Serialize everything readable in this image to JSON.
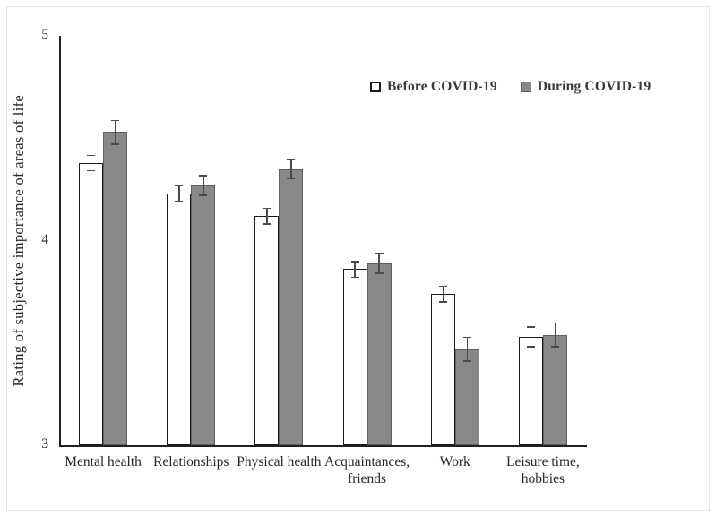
{
  "figure": {
    "background": "#ffffff",
    "border_color": "#e4e4e4",
    "text_color": "#262626",
    "axis_color": "#1f1f1f",
    "error_bar_color": "#4a4a4a"
  },
  "chart_data": {
    "type": "bar",
    "title": "",
    "xlabel": "",
    "ylabel": "Rating of subjective importance of areas of life",
    "ylim": [
      3,
      5
    ],
    "yticks": [
      3,
      4,
      5
    ],
    "grid": false,
    "legend_position": "top-right-inside",
    "categories": [
      "Mental health",
      "Relationships",
      "Physical health",
      "Acquaintances,\nfriends",
      "Work",
      "Leisure time,\nhobbies"
    ],
    "series": [
      {
        "name": "Before COVID-19",
        "fill": "#ffffff",
        "border": "#1a1a1a",
        "values": [
          4.38,
          4.23,
          4.12,
          3.86,
          3.74,
          3.53
        ],
        "errors": [
          0.04,
          0.04,
          0.04,
          0.04,
          0.04,
          0.05
        ]
      },
      {
        "name": "During COVID-19",
        "fill": "#888888",
        "border": "#606060",
        "values": [
          4.53,
          4.27,
          4.35,
          3.89,
          3.47,
          3.54
        ],
        "errors": [
          0.06,
          0.05,
          0.05,
          0.05,
          0.06,
          0.06
        ]
      }
    ]
  }
}
